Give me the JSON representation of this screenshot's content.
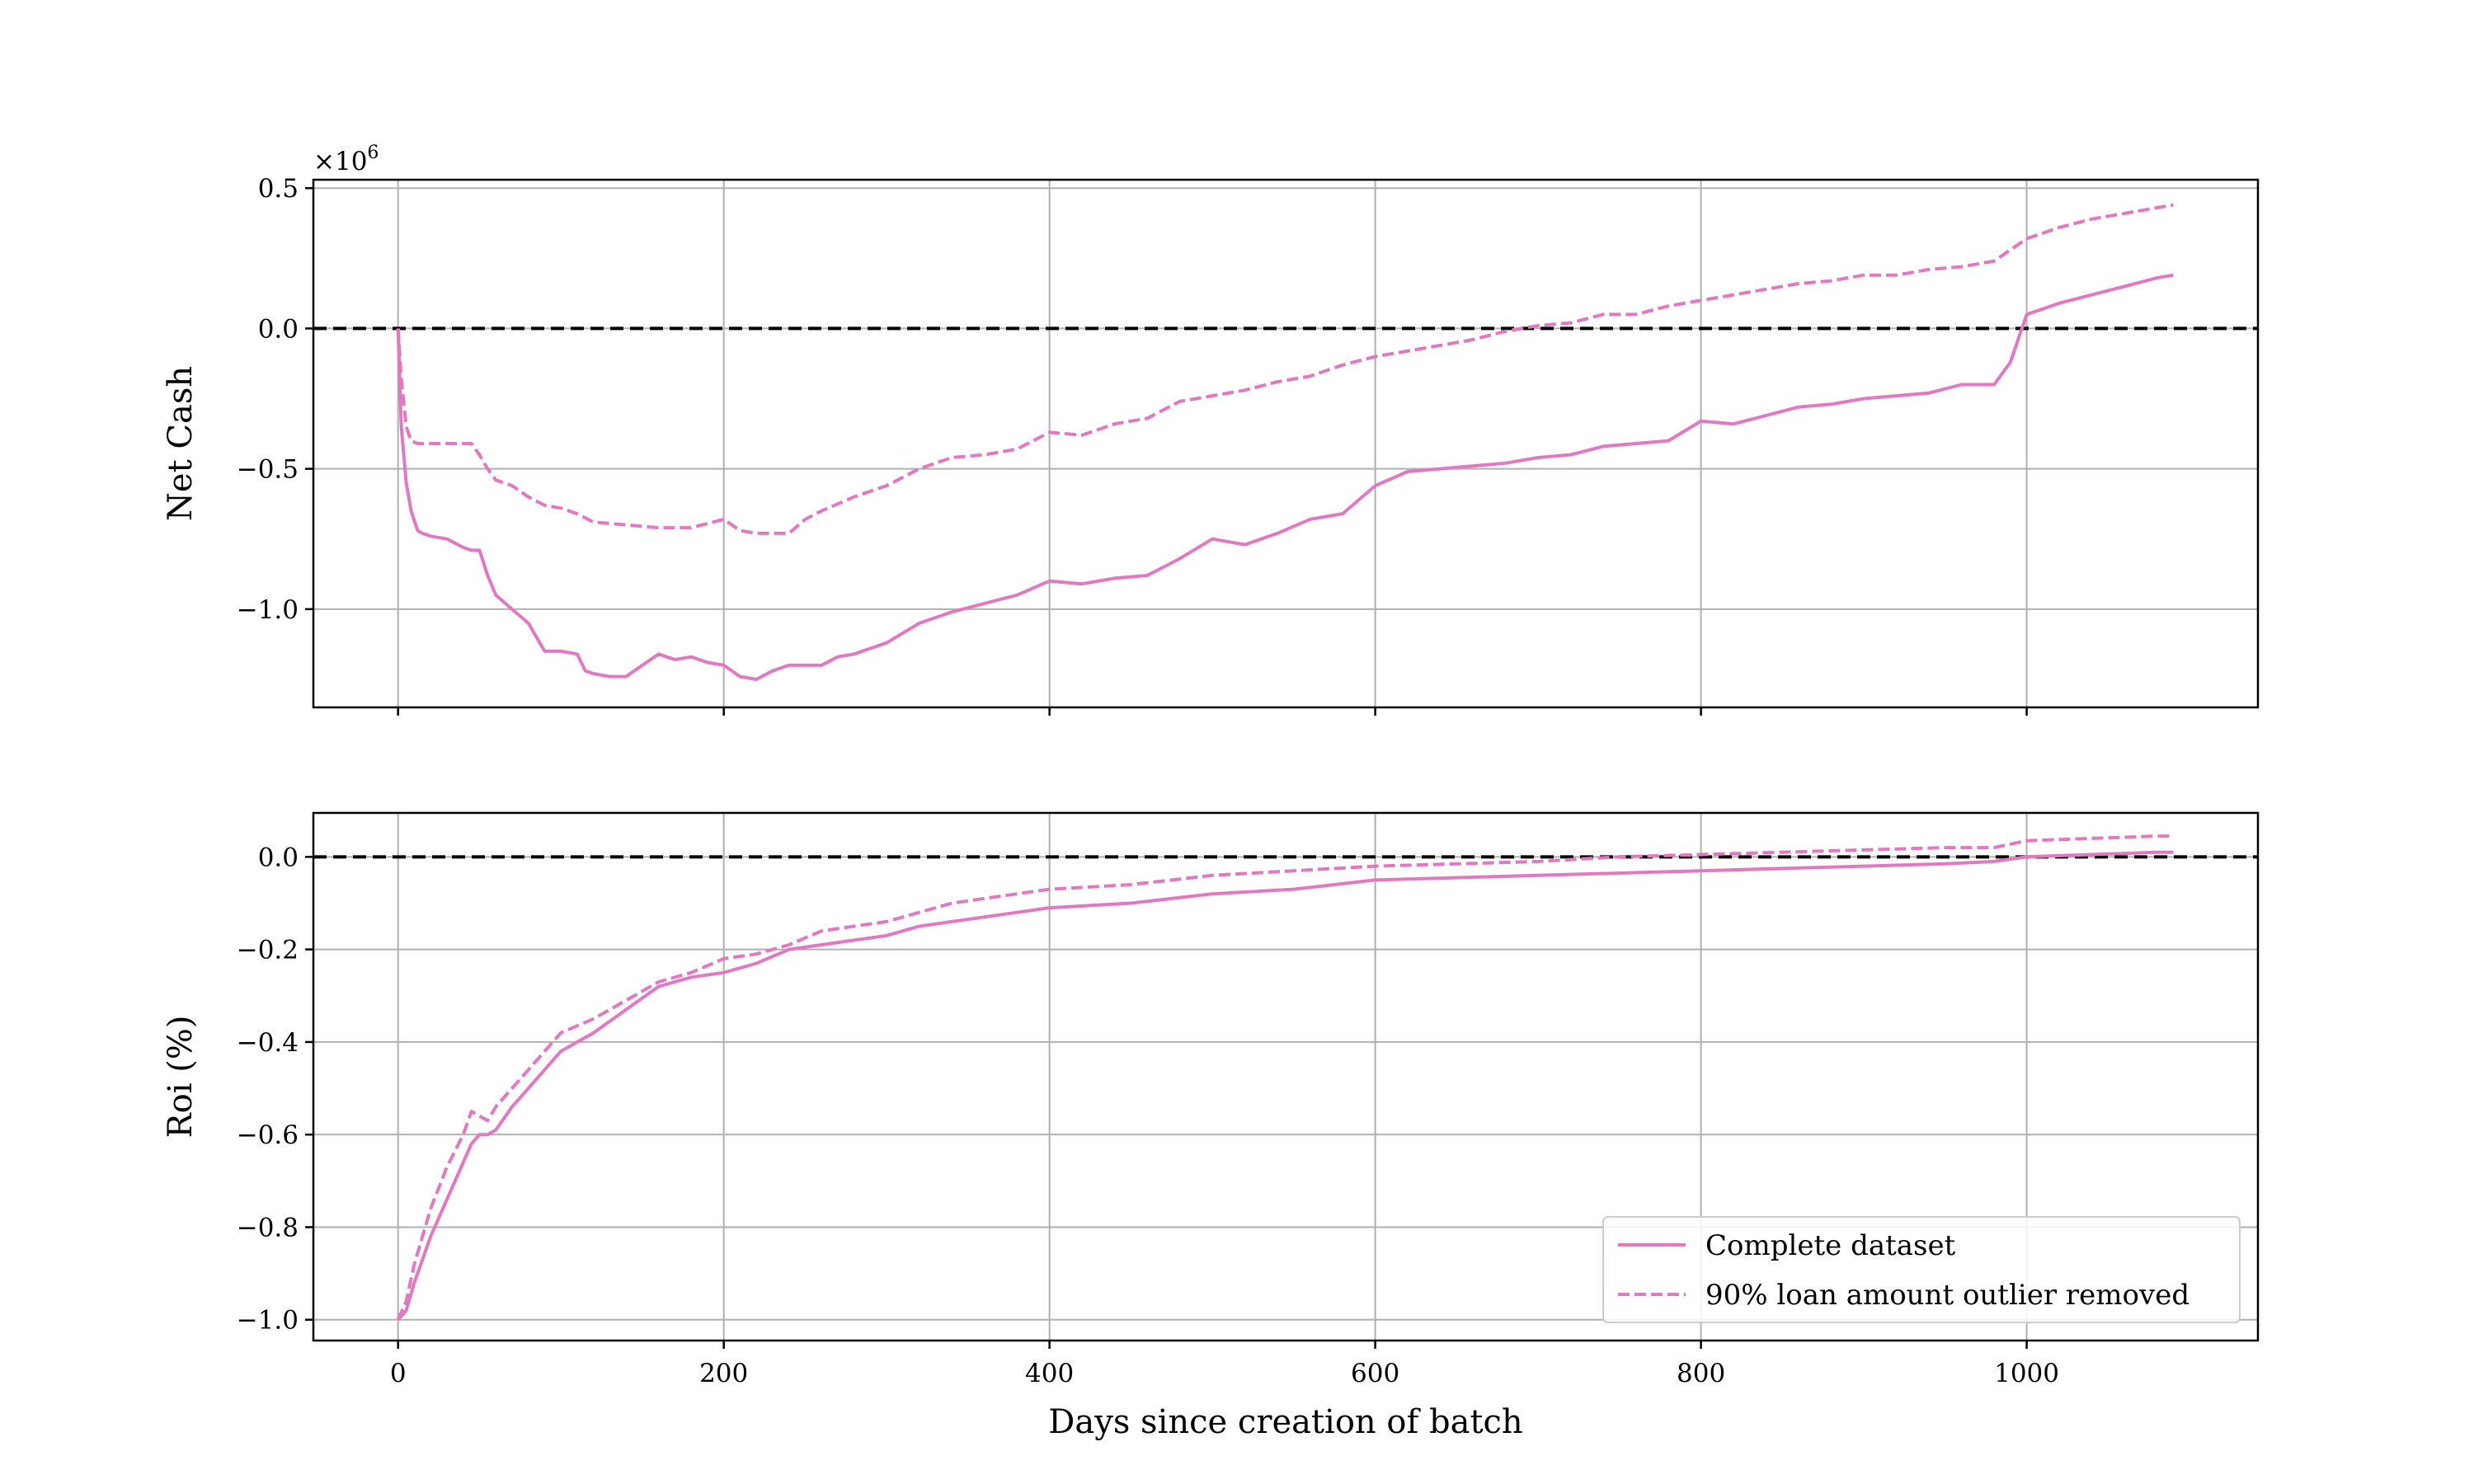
{
  "chart_data": [
    {
      "type": "line",
      "title": "",
      "xlabel": "",
      "ylabel": "Net Cash",
      "y_scale_label": "×10",
      "y_scale_exponent": "6",
      "xlim": [
        -52,
        1142
      ],
      "ylim": [
        -1.35,
        0.53
      ],
      "xticks": [
        0,
        200,
        400,
        600,
        800,
        1000
      ],
      "yticks": [
        0.5,
        0.0,
        -0.5,
        -1.0
      ],
      "ytick_labels": [
        "0.5",
        "0.0",
        "−0.5",
        "−1.0"
      ],
      "grid": true,
      "reference_line_y": 0,
      "series": [
        {
          "name": "Complete dataset",
          "style": "solid",
          "x": [
            0,
            2,
            5,
            8,
            12,
            15,
            20,
            30,
            40,
            45,
            50,
            55,
            60,
            70,
            80,
            90,
            100,
            110,
            115,
            120,
            130,
            140,
            150,
            160,
            170,
            180,
            190,
            200,
            210,
            220,
            230,
            240,
            250,
            260,
            270,
            280,
            290,
            300,
            320,
            340,
            360,
            380,
            400,
            420,
            440,
            460,
            480,
            500,
            520,
            540,
            560,
            580,
            600,
            620,
            640,
            660,
            680,
            700,
            720,
            740,
            760,
            780,
            800,
            820,
            840,
            860,
            880,
            900,
            920,
            940,
            960,
            980,
            990,
            1000,
            1020,
            1040,
            1060,
            1080,
            1090
          ],
          "y": [
            0.0,
            -0.35,
            -0.55,
            -0.65,
            -0.72,
            -0.73,
            -0.74,
            -0.75,
            -0.78,
            -0.79,
            -0.79,
            -0.88,
            -0.95,
            -1.0,
            -1.05,
            -1.15,
            -1.15,
            -1.16,
            -1.22,
            -1.23,
            -1.24,
            -1.24,
            -1.2,
            -1.16,
            -1.18,
            -1.17,
            -1.19,
            -1.2,
            -1.24,
            -1.25,
            -1.22,
            -1.2,
            -1.2,
            -1.2,
            -1.17,
            -1.16,
            -1.14,
            -1.12,
            -1.05,
            -1.01,
            -0.98,
            -0.95,
            -0.9,
            -0.91,
            -0.89,
            -0.88,
            -0.82,
            -0.75,
            -0.77,
            -0.73,
            -0.68,
            -0.66,
            -0.56,
            -0.51,
            -0.5,
            -0.49,
            -0.48,
            -0.46,
            -0.45,
            -0.42,
            -0.41,
            -0.4,
            -0.33,
            -0.34,
            -0.31,
            -0.28,
            -0.27,
            -0.25,
            -0.24,
            -0.23,
            -0.2,
            -0.2,
            -0.12,
            0.05,
            0.09,
            0.12,
            0.15,
            0.18,
            0.19
          ]
        },
        {
          "name": "90% loan amount outlier removed",
          "style": "dashed",
          "x": [
            0,
            2,
            5,
            8,
            12,
            20,
            30,
            45,
            50,
            55,
            60,
            70,
            80,
            90,
            100,
            110,
            120,
            140,
            160,
            180,
            200,
            210,
            220,
            240,
            250,
            260,
            280,
            300,
            320,
            340,
            360,
            380,
            400,
            420,
            440,
            460,
            480,
            500,
            520,
            540,
            560,
            580,
            600,
            620,
            640,
            660,
            680,
            700,
            720,
            740,
            760,
            780,
            800,
            820,
            840,
            860,
            880,
            900,
            920,
            940,
            960,
            980,
            990,
            1000,
            1020,
            1040,
            1060,
            1080,
            1090
          ],
          "y": [
            0.0,
            -0.18,
            -0.35,
            -0.4,
            -0.41,
            -0.41,
            -0.41,
            -0.41,
            -0.45,
            -0.5,
            -0.54,
            -0.56,
            -0.6,
            -0.63,
            -0.64,
            -0.66,
            -0.69,
            -0.7,
            -0.71,
            -0.71,
            -0.68,
            -0.72,
            -0.73,
            -0.73,
            -0.68,
            -0.65,
            -0.6,
            -0.56,
            -0.5,
            -0.46,
            -0.45,
            -0.43,
            -0.37,
            -0.38,
            -0.34,
            -0.32,
            -0.26,
            -0.24,
            -0.22,
            -0.19,
            -0.17,
            -0.13,
            -0.1,
            -0.08,
            -0.06,
            -0.04,
            -0.01,
            0.01,
            0.02,
            0.05,
            0.05,
            0.08,
            0.1,
            0.12,
            0.14,
            0.16,
            0.17,
            0.19,
            0.19,
            0.21,
            0.22,
            0.24,
            0.28,
            0.32,
            0.36,
            0.39,
            0.41,
            0.43,
            0.44
          ]
        }
      ]
    },
    {
      "type": "line",
      "title": "",
      "xlabel": "Days since creation of batch",
      "ylabel": "Roi (%)",
      "xlim": [
        -52,
        1142
      ],
      "ylim": [
        -1.045,
        0.095
      ],
      "xticks": [
        0,
        200,
        400,
        600,
        800,
        1000
      ],
      "xtick_labels": [
        "0",
        "200",
        "400",
        "600",
        "800",
        "1000"
      ],
      "yticks": [
        0.0,
        -0.2,
        -0.4,
        -0.6,
        -0.8,
        -1.0
      ],
      "ytick_labels": [
        "0.0",
        "−0.2",
        "−0.4",
        "−0.6",
        "−0.8",
        "−1.0"
      ],
      "grid": true,
      "reference_line_y": 0,
      "legend_position": "lower-right",
      "series": [
        {
          "name": "Complete dataset",
          "style": "solid",
          "x": [
            0,
            5,
            10,
            20,
            30,
            40,
            45,
            50,
            55,
            60,
            70,
            80,
            90,
            100,
            120,
            140,
            160,
            180,
            200,
            220,
            240,
            260,
            280,
            300,
            320,
            340,
            360,
            380,
            400,
            450,
            500,
            550,
            600,
            650,
            700,
            750,
            800,
            850,
            900,
            950,
            980,
            1000,
            1040,
            1080,
            1090
          ],
          "y": [
            -1.0,
            -0.98,
            -0.92,
            -0.82,
            -0.74,
            -0.66,
            -0.62,
            -0.6,
            -0.6,
            -0.59,
            -0.54,
            -0.5,
            -0.46,
            -0.42,
            -0.38,
            -0.33,
            -0.28,
            -0.26,
            -0.25,
            -0.23,
            -0.2,
            -0.19,
            -0.18,
            -0.17,
            -0.15,
            -0.14,
            -0.13,
            -0.12,
            -0.11,
            -0.1,
            -0.08,
            -0.07,
            -0.05,
            -0.045,
            -0.04,
            -0.035,
            -0.03,
            -0.025,
            -0.02,
            -0.015,
            -0.01,
            0.0,
            0.005,
            0.01,
            0.01
          ]
        },
        {
          "name": "90% loan amount outlier removed",
          "style": "dashed",
          "x": [
            0,
            5,
            10,
            20,
            30,
            40,
            45,
            50,
            55,
            60,
            70,
            80,
            90,
            100,
            120,
            140,
            160,
            180,
            200,
            220,
            240,
            260,
            280,
            300,
            320,
            340,
            360,
            380,
            400,
            450,
            500,
            550,
            600,
            650,
            700,
            750,
            800,
            850,
            900,
            950,
            980,
            1000,
            1040,
            1080,
            1090
          ],
          "y": [
            -1.0,
            -0.96,
            -0.88,
            -0.76,
            -0.67,
            -0.6,
            -0.55,
            -0.56,
            -0.57,
            -0.54,
            -0.5,
            -0.46,
            -0.42,
            -0.38,
            -0.35,
            -0.31,
            -0.27,
            -0.25,
            -0.22,
            -0.21,
            -0.19,
            -0.16,
            -0.15,
            -0.14,
            -0.12,
            -0.1,
            -0.09,
            -0.08,
            -0.07,
            -0.06,
            -0.04,
            -0.03,
            -0.02,
            -0.015,
            -0.01,
            0.0,
            0.005,
            0.01,
            0.015,
            0.02,
            0.02,
            0.035,
            0.04,
            0.045,
            0.045
          ]
        }
      ]
    }
  ],
  "colors": {
    "series": "#e377c2",
    "reference_line": "#000000",
    "grid": "#b0b0b0"
  }
}
